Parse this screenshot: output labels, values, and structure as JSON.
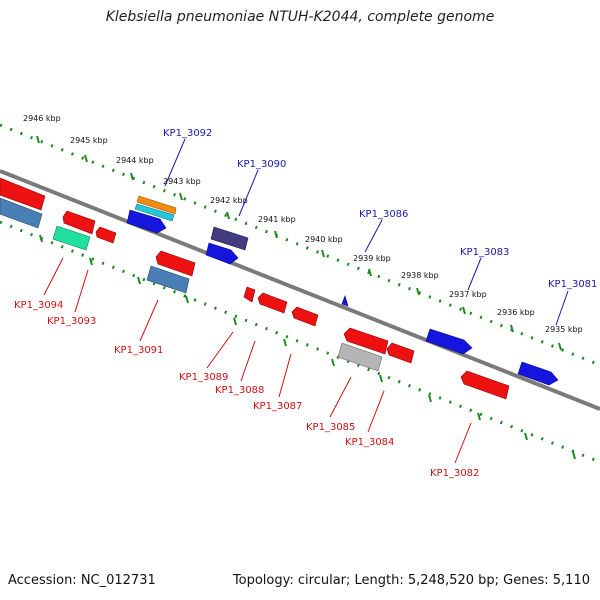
{
  "title": "Klebsiella pneumoniae NTUH-K2044, complete genome",
  "footer": {
    "accession": "Accession: NC_012731",
    "summary": "Topology: circular; Length: 5,248,520 bp; Genes: 5,110"
  },
  "kbp_labels": [
    "2946 kbp",
    "2945 kbp",
    "2944 kbp",
    "2943 kbp",
    "2942 kbp",
    "2941 kbp",
    "2940 kbp",
    "2939 kbp",
    "2938 kbp",
    "2937 kbp",
    "2936 kbp",
    "2935 kbp"
  ],
  "gene_labels_forward": [
    "KP1_3092",
    "KP1_3090",
    "KP1_3086",
    "KP1_3083",
    "KP1_3081"
  ],
  "gene_labels_reverse": [
    "KP1_3094",
    "KP1_3093",
    "KP1_3091",
    "KP1_3089",
    "KP1_3088",
    "KP1_3087",
    "KP1_3085",
    "KP1_3084",
    "KP1_3082"
  ],
  "colors": {
    "backbone": "#7a7a7a",
    "ticks": "#1e8a1e",
    "forward_label": "#1a1aa8",
    "reverse_label": "#cc1111",
    "red_gene": "#ee1111",
    "blue_gene": "#1515dd",
    "steel_gene": "#4a7fb5",
    "navy_gene": "#443a80",
    "orange_gene": "#f08a10",
    "cyan_gene": "#20c8d8",
    "teal_gene": "#20e0a0",
    "grey_gene": "#b5b5b5"
  }
}
